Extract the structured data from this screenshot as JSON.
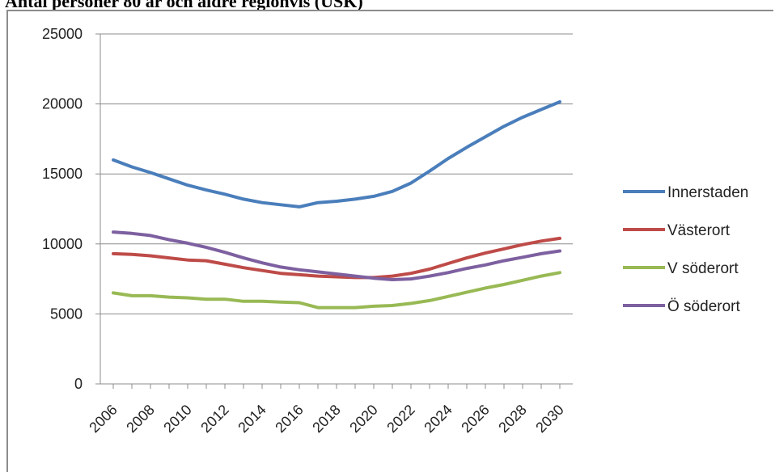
{
  "chart_data": {
    "type": "line",
    "title": "Antal personer 80 år och äldre regionvis (USK)",
    "xlabel": "",
    "ylabel": "",
    "ylim": [
      0,
      25000
    ],
    "yticks": [
      0,
      5000,
      10000,
      15000,
      20000,
      25000
    ],
    "x": [
      2006,
      2007,
      2008,
      2009,
      2010,
      2011,
      2012,
      2013,
      2014,
      2015,
      2016,
      2017,
      2018,
      2019,
      2020,
      2021,
      2022,
      2023,
      2024,
      2025,
      2026,
      2027,
      2028,
      2029,
      2030
    ],
    "xtick_labels": [
      "2006",
      "2008",
      "2010",
      "2012",
      "2014",
      "2016",
      "2018",
      "2020",
      "2022",
      "2024",
      "2026",
      "2028",
      "2030"
    ],
    "grid": true,
    "legend_position": "right",
    "series": [
      {
        "name": "Innerstaden",
        "color": "#4a7ebb",
        "values": [
          16000,
          15500,
          15100,
          14650,
          14200,
          13850,
          13550,
          13200,
          12950,
          12800,
          12650,
          12950,
          13050,
          13200,
          13400,
          13750,
          14350,
          15200,
          16100,
          16900,
          17650,
          18400,
          19050,
          19600,
          20150
        ]
      },
      {
        "name": "Västerort",
        "color": "#be4b48",
        "values": [
          9300,
          9250,
          9150,
          9000,
          8850,
          8800,
          8550,
          8300,
          8100,
          7900,
          7800,
          7700,
          7650,
          7600,
          7600,
          7700,
          7900,
          8200,
          8600,
          9000,
          9350,
          9650,
          9950,
          10200,
          10400
        ]
      },
      {
        "name": "V söderort",
        "color": "#98b954",
        "values": [
          6500,
          6300,
          6300,
          6200,
          6150,
          6050,
          6050,
          5900,
          5900,
          5850,
          5800,
          5450,
          5450,
          5450,
          5550,
          5600,
          5750,
          5950,
          6250,
          6550,
          6850,
          7100,
          7400,
          7700,
          7950
        ]
      },
      {
        "name": "Ö söderort",
        "color": "#7d60a0",
        "values": [
          10850,
          10750,
          10600,
          10300,
          10050,
          9750,
          9400,
          9000,
          8650,
          8350,
          8150,
          8000,
          7850,
          7700,
          7550,
          7450,
          7500,
          7700,
          7950,
          8250,
          8500,
          8800,
          9050,
          9300,
          9500
        ]
      }
    ]
  }
}
